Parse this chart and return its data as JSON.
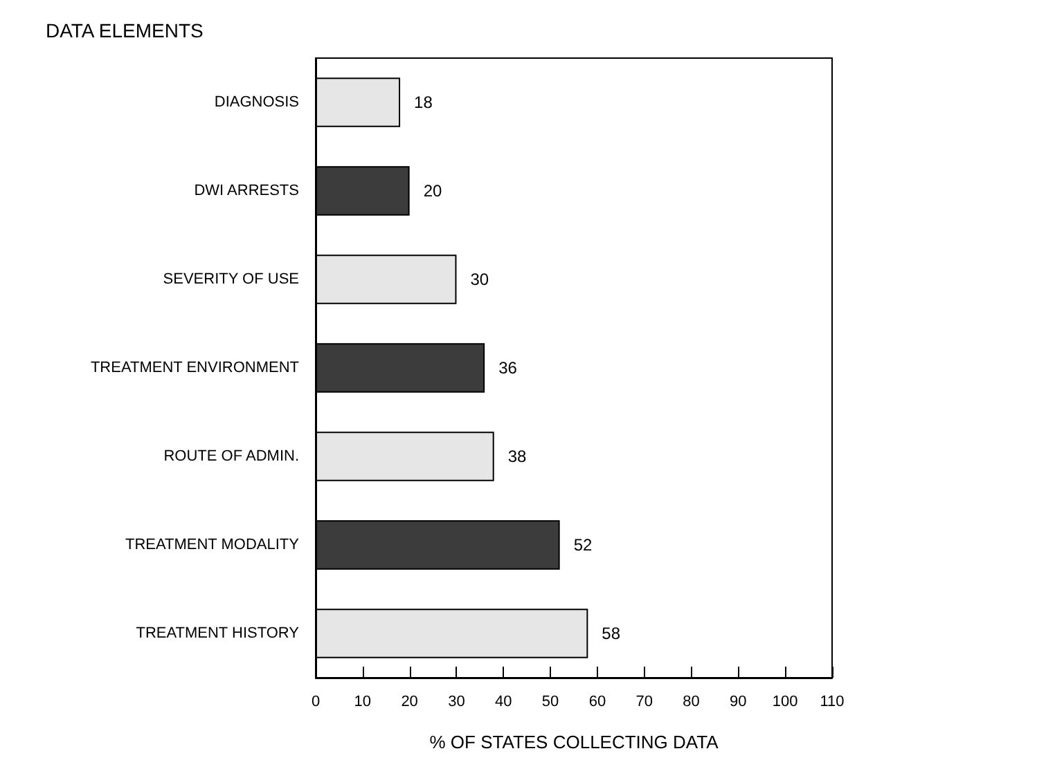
{
  "chart_data": {
    "type": "bar",
    "orientation": "horizontal",
    "title": "DATA ELEMENTS",
    "xlabel": "% OF STATES COLLECTING DATA",
    "categories": [
      "DIAGNOSIS",
      "DWI ARRESTS",
      "SEVERITY OF USE",
      "TREATMENT ENVIRONMENT",
      "ROUTE OF ADMIN.",
      "TREATMENT MODALITY",
      "TREATMENT HISTORY"
    ],
    "values": [
      18,
      20,
      30,
      36,
      38,
      52,
      58
    ],
    "colors": [
      "#e6e6e6",
      "#3c3c3c",
      "#e6e6e6",
      "#3c3c3c",
      "#e6e6e6",
      "#3c3c3c",
      "#e6e6e6"
    ],
    "xlim": [
      0,
      110
    ],
    "xticks": [
      0,
      10,
      20,
      30,
      40,
      50,
      60,
      70,
      80,
      90,
      100,
      110
    ],
    "data_labels": true,
    "grid": false
  }
}
